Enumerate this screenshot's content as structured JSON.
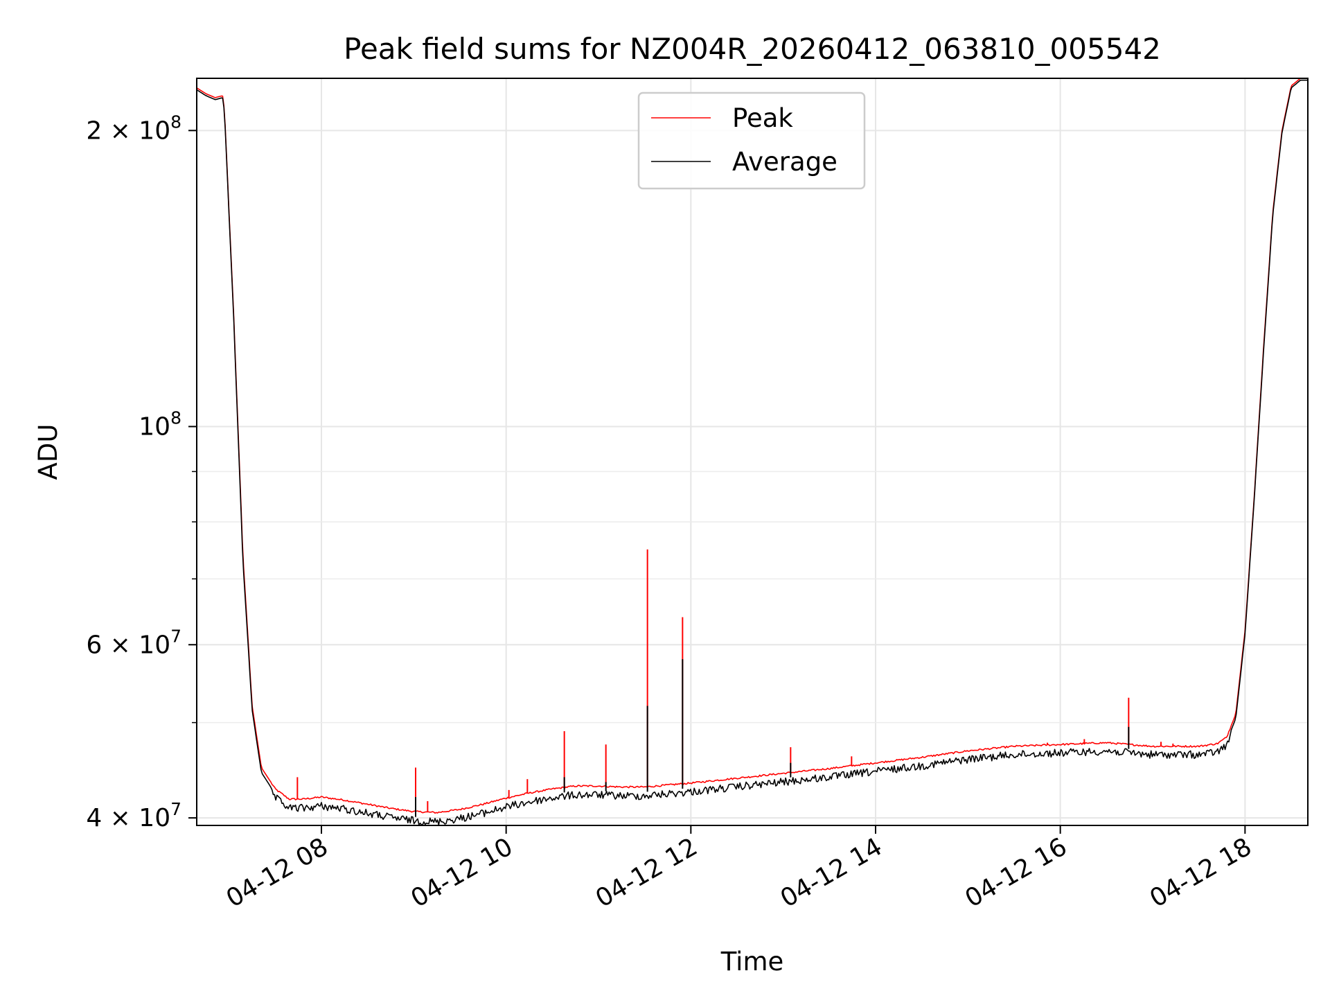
{
  "chart_data": {
    "type": "line",
    "title": "Peak field sums for NZ004R_20260412_063810_005542",
    "xlabel": "Time",
    "ylabel": "ADU",
    "yscale": "log",
    "xlim": [
      6.65,
      18.68
    ],
    "ylim": [
      39300000,
      226000000
    ],
    "grid": true,
    "legend_position": "upper center",
    "x_ticks": [
      {
        "value": 8,
        "label": "04-12 08"
      },
      {
        "value": 10,
        "label": "04-12 10"
      },
      {
        "value": 12,
        "label": "04-12 12"
      },
      {
        "value": 14,
        "label": "04-12 14"
      },
      {
        "value": 16,
        "label": "04-12 16"
      },
      {
        "value": 18,
        "label": "04-12 18"
      }
    ],
    "y_major_ticks": [
      {
        "value": 40000000,
        "base": "4",
        "exp": "7"
      },
      {
        "value": 60000000,
        "base": "6",
        "exp": "7"
      },
      {
        "value": 100000000,
        "base": "",
        "exp": "8"
      },
      {
        "value": 200000000,
        "base": "2",
        "exp": "8"
      }
    ],
    "y_minor_ticks": [
      50000000,
      70000000,
      80000000,
      90000000
    ],
    "series": [
      {
        "name": "Peak",
        "color": "#ff0000",
        "x": [
          6.65,
          6.75,
          6.85,
          6.93,
          6.95,
          7.05,
          7.15,
          7.25,
          7.35,
          7.5,
          7.65,
          7.8,
          8.0,
          8.25,
          8.5,
          8.75,
          9.0,
          9.25,
          9.5,
          9.75,
          10.0,
          10.25,
          10.5,
          10.75,
          11.0,
          11.25,
          11.5,
          11.75,
          12.0,
          12.5,
          13.0,
          13.5,
          14.0,
          14.5,
          15.0,
          15.5,
          16.0,
          16.5,
          17.0,
          17.5,
          17.7,
          17.8,
          17.9,
          18.0,
          18.1,
          18.2,
          18.3,
          18.4,
          18.5,
          18.6,
          18.68
        ],
        "y": [
          221000000,
          218000000,
          216000000,
          217000000,
          210000000,
          130000000,
          74000000,
          52000000,
          45000000,
          42800000,
          41800000,
          41800000,
          42000000,
          41700000,
          41300000,
          40900000,
          40600000,
          40500000,
          40800000,
          41300000,
          41900000,
          42400000,
          42800000,
          43100000,
          43100000,
          43000000,
          43000000,
          43200000,
          43400000,
          43900000,
          44400000,
          44900000,
          45500000,
          46100000,
          46800000,
          47300000,
          47500000,
          47700000,
          47300000,
          47300000,
          47600000,
          48300000,
          51000000,
          62000000,
          85000000,
          120000000,
          165000000,
          200000000,
          222000000,
          226000000,
          226000000
        ],
        "spikes": [
          {
            "x": 7.74,
            "y": 44000000
          },
          {
            "x": 9.02,
            "y": 45000000
          },
          {
            "x": 9.15,
            "y": 41600000
          },
          {
            "x": 10.03,
            "y": 42700000
          },
          {
            "x": 10.23,
            "y": 43800000
          },
          {
            "x": 10.63,
            "y": 49000000
          },
          {
            "x": 11.08,
            "y": 47500000
          },
          {
            "x": 11.53,
            "y": 75000000
          },
          {
            "x": 11.91,
            "y": 64000000
          },
          {
            "x": 13.08,
            "y": 47200000
          },
          {
            "x": 13.74,
            "y": 46200000
          },
          {
            "x": 15.86,
            "y": 47700000
          },
          {
            "x": 16.26,
            "y": 48100000
          },
          {
            "x": 16.74,
            "y": 53000000
          },
          {
            "x": 17.09,
            "y": 47800000
          },
          {
            "x": 17.22,
            "y": 47600000
          }
        ]
      },
      {
        "name": "Average",
        "color": "#000000",
        "x": [
          6.65,
          6.75,
          6.85,
          6.93,
          6.95,
          7.05,
          7.15,
          7.25,
          7.35,
          7.5,
          7.65,
          7.8,
          8.0,
          8.25,
          8.5,
          8.75,
          9.0,
          9.25,
          9.5,
          9.75,
          10.0,
          10.25,
          10.5,
          10.75,
          11.0,
          11.25,
          11.5,
          11.75,
          12.0,
          12.5,
          13.0,
          13.5,
          14.0,
          14.5,
          15.0,
          15.5,
          16.0,
          16.5,
          17.0,
          17.5,
          17.7,
          17.8,
          17.9,
          18.0,
          18.1,
          18.2,
          18.3,
          18.4,
          18.5,
          18.6,
          18.68
        ],
        "y": [
          220000000,
          217000000,
          215000000,
          216000000,
          209000000,
          129000000,
          73000000,
          51500000,
          44500000,
          42300000,
          41300000,
          41300000,
          41500000,
          41200000,
          40800000,
          40400000,
          40100000,
          40000000,
          40300000,
          40800000,
          41400000,
          41900000,
          42300000,
          42600000,
          42600000,
          42500000,
          42500000,
          42700000,
          42900000,
          43400000,
          43900000,
          44400000,
          45000000,
          45600000,
          46300000,
          46800000,
          47000000,
          47200000,
          46800000,
          46800000,
          47100000,
          47800000,
          50500000,
          61500000,
          84500000,
          119000000,
          164000000,
          199000000,
          221000000,
          225000000,
          225000000
        ],
        "spikes": [
          {
            "x": 9.02,
            "y": 42000000
          },
          {
            "x": 10.63,
            "y": 44000000
          },
          {
            "x": 11.08,
            "y": 43500000
          },
          {
            "x": 11.53,
            "y": 52000000
          },
          {
            "x": 11.91,
            "y": 58000000
          },
          {
            "x": 13.08,
            "y": 45500000
          },
          {
            "x": 16.74,
            "y": 49500000
          }
        ]
      }
    ]
  }
}
